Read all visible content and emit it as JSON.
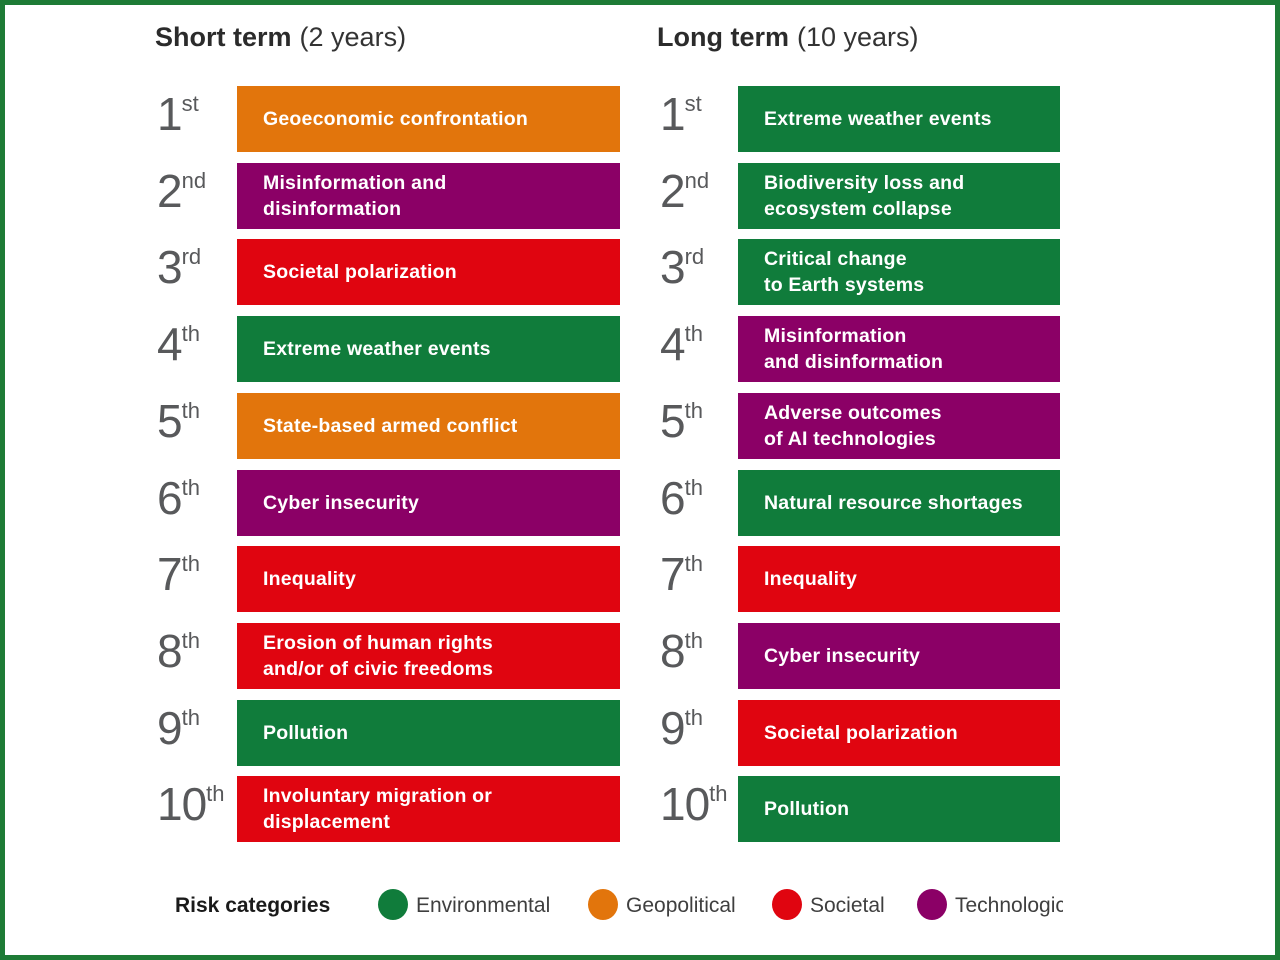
{
  "frame": {
    "border_color": "#1e7b36"
  },
  "risk_categories": {
    "environmental": {
      "label": "Environmental",
      "color": "#107c3b"
    },
    "geopolitical": {
      "label": "Geopolitical",
      "color": "#e2750c"
    },
    "societal": {
      "label": "Societal",
      "color": "#e00510"
    },
    "technological": {
      "label": "Technological",
      "color": "#8b0066"
    }
  },
  "legend": {
    "title": "Risk categories",
    "items": [
      {
        "category": "environmental",
        "label": "Environmental"
      },
      {
        "category": "geopolitical",
        "label": "Geopolitical"
      },
      {
        "category": "societal",
        "label": "Societal"
      },
      {
        "category": "technological",
        "label": "Technological"
      }
    ]
  },
  "chart_data": {
    "type": "table",
    "columns": [
      {
        "title": "Short term",
        "subtitle": "(2 years)",
        "items": [
          {
            "rank": "1",
            "ordinal": "st",
            "label": "Geoeconomic confrontation",
            "category": "geopolitical"
          },
          {
            "rank": "2",
            "ordinal": "nd",
            "label": "Misinformation and\ndisinformation",
            "category": "technological"
          },
          {
            "rank": "3",
            "ordinal": "rd",
            "label": "Societal polarization",
            "category": "societal"
          },
          {
            "rank": "4",
            "ordinal": "th",
            "label": "Extreme weather events",
            "category": "environmental"
          },
          {
            "rank": "5",
            "ordinal": "th",
            "label": "State-based armed conflict",
            "category": "geopolitical"
          },
          {
            "rank": "6",
            "ordinal": "th",
            "label": "Cyber insecurity",
            "category": "technological"
          },
          {
            "rank": "7",
            "ordinal": "th",
            "label": "Inequality",
            "category": "societal"
          },
          {
            "rank": "8",
            "ordinal": "th",
            "label": "Erosion of human rights\nand/or of civic freedoms",
            "category": "societal"
          },
          {
            "rank": "9",
            "ordinal": "th",
            "label": "Pollution",
            "category": "environmental"
          },
          {
            "rank": "10",
            "ordinal": "th",
            "label": "Involuntary migration or\ndisplacement",
            "category": "societal"
          }
        ]
      },
      {
        "title": "Long term",
        "subtitle": "(10 years)",
        "items": [
          {
            "rank": "1",
            "ordinal": "st",
            "label": "Extreme weather events",
            "category": "environmental"
          },
          {
            "rank": "2",
            "ordinal": "nd",
            "label": "Biodiversity loss and\necosystem collapse",
            "category": "environmental"
          },
          {
            "rank": "3",
            "ordinal": "rd",
            "label": "Critical change\nto Earth systems",
            "category": "environmental"
          },
          {
            "rank": "4",
            "ordinal": "th",
            "label": "Misinformation\nand disinformation",
            "category": "technological"
          },
          {
            "rank": "5",
            "ordinal": "th",
            "label": "Adverse outcomes\nof AI technologies",
            "category": "technological"
          },
          {
            "rank": "6",
            "ordinal": "th",
            "label": "Natural resource shortages",
            "category": "environmental"
          },
          {
            "rank": "7",
            "ordinal": "th",
            "label": "Inequality",
            "category": "societal"
          },
          {
            "rank": "8",
            "ordinal": "th",
            "label": "Cyber insecurity",
            "category": "technological"
          },
          {
            "rank": "9",
            "ordinal": "th",
            "label": "Societal polarization",
            "category": "societal"
          },
          {
            "rank": "10",
            "ordinal": "th",
            "label": "Pollution",
            "category": "environmental"
          }
        ]
      }
    ]
  }
}
